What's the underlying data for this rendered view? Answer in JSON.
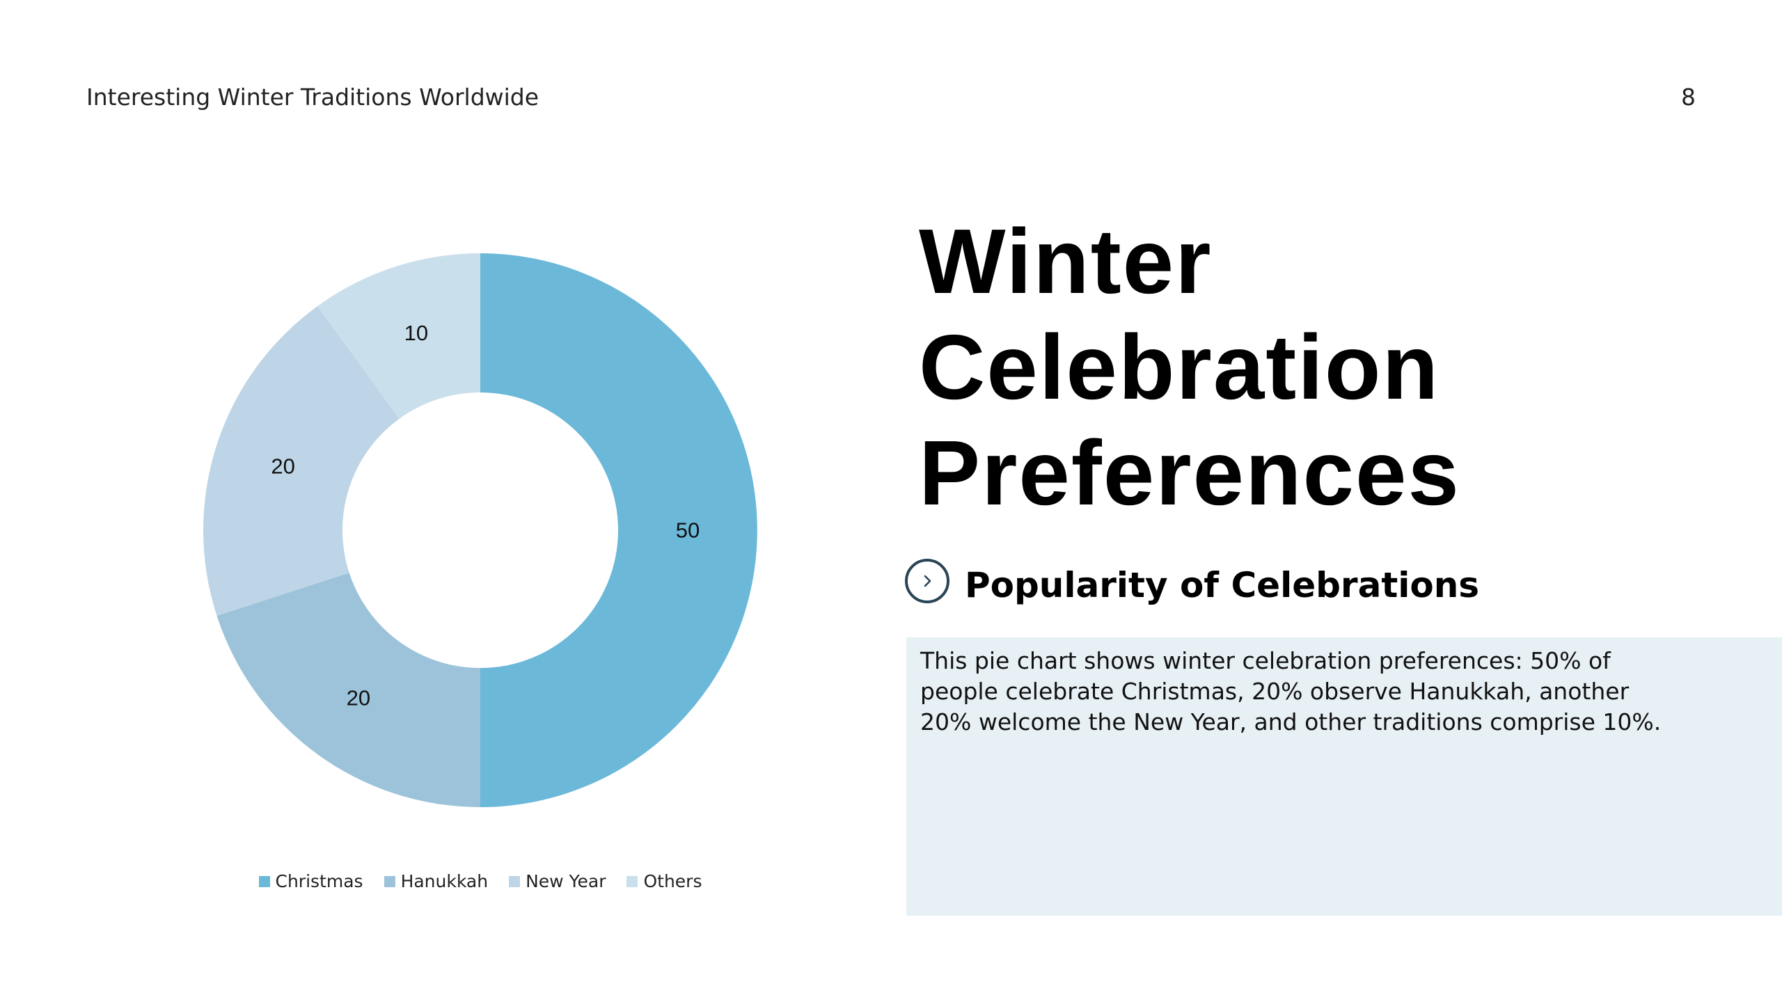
{
  "header": {
    "title": "Interesting Winter Traditions Worldwide",
    "page_number": "8"
  },
  "main_title": {
    "line1": "Winter",
    "line2": "Celebration",
    "line3": "Preferences"
  },
  "subheading": "Popularity of Celebrations",
  "description": "This pie chart shows winter celebration preferences: 50% of people celebrate Christmas, 20% observe Hanukkah, another 20% welcome the New Year, and other traditions comprise 10%.",
  "icons": {
    "subheading_icon": "chevron-right-icon"
  },
  "chart_data": {
    "type": "pie",
    "variant": "donut",
    "categories": [
      "Christmas",
      "Hanukkah",
      "New Year",
      "Others"
    ],
    "values": [
      50,
      20,
      20,
      10
    ],
    "data_labels": [
      "50",
      "20",
      "20",
      "10"
    ],
    "colors": [
      "#6bb8d9",
      "#9cc3da",
      "#bdd5e6",
      "#cadfec"
    ],
    "legend_position": "bottom",
    "title": ""
  }
}
